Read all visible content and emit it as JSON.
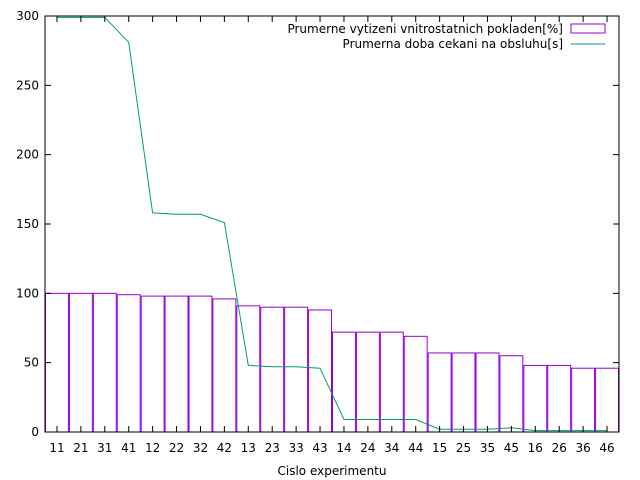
{
  "chart_data": {
    "type": "bar",
    "title": "",
    "xlabel": "Cislo experimentu",
    "ylabel": "",
    "ylim": [
      0,
      300
    ],
    "yticks": [
      0,
      50,
      100,
      150,
      200,
      250,
      300
    ],
    "grid": false,
    "legend_position": "top-right",
    "categories": [
      "11",
      "21",
      "31",
      "41",
      "12",
      "22",
      "32",
      "42",
      "13",
      "23",
      "33",
      "43",
      "14",
      "24",
      "34",
      "44",
      "15",
      "25",
      "35",
      "45",
      "16",
      "26",
      "36",
      "46"
    ],
    "series": [
      {
        "name": "Prumerne vytizeni vnitrostatnich pokladen[%]",
        "type": "bar",
        "color": "#9400d3",
        "values": [
          100,
          100,
          100,
          99,
          98,
          98,
          98,
          96,
          91,
          90,
          90,
          88,
          72,
          72,
          72,
          69,
          57,
          57,
          57,
          55,
          48,
          48,
          46,
          46
        ]
      },
      {
        "name": "Prumerna doba cekani na obsluhu[s]",
        "type": "line",
        "color": "#009e73",
        "values": [
          299,
          299,
          299,
          281,
          158,
          157,
          157,
          151,
          48,
          47,
          47,
          46,
          9,
          9,
          9,
          9,
          2,
          2,
          2,
          3,
          1,
          1,
          1,
          1
        ]
      }
    ]
  }
}
